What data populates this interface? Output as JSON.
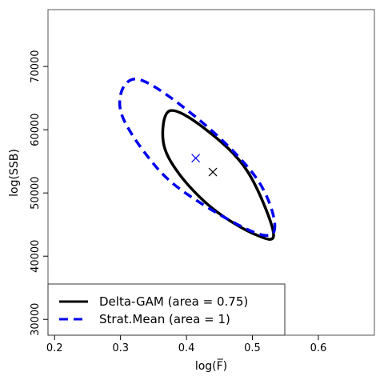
{
  "chart_data": {
    "type": "scatter",
    "title": "",
    "xlabel": "log(F̅)",
    "ylabel": "log(SSB)",
    "xlim": [
      0.19,
      0.685
    ],
    "ylim": [
      27500,
      79000
    ],
    "xticks": [
      0.2,
      0.3,
      0.4,
      0.5,
      0.6
    ],
    "xtick_labels": [
      "0.2",
      "0.3",
      "0.4",
      "0.5",
      "0.6"
    ],
    "yticks": [
      30000,
      40000,
      50000,
      60000,
      70000
    ],
    "ytick_labels": [
      "30000",
      "40000",
      "50000",
      "60000",
      "70000"
    ],
    "grid": false,
    "legend_position": "bottom-left",
    "series": [
      {
        "name": "Delta-GAM (area = 0.75)",
        "style": "solid",
        "color": "#000000",
        "ellipse": {
          "points": [
            {
              "x": 0.532,
              "y": 43600
            },
            {
              "x": 0.503,
              "y": 43500
            },
            {
              "x": 0.44,
              "y": 47500
            },
            {
              "x": 0.389,
              "y": 53000
            },
            {
              "x": 0.365,
              "y": 58000
            },
            {
              "x": 0.375,
              "y": 63000
            },
            {
              "x": 0.43,
              "y": 60000
            },
            {
              "x": 0.492,
              "y": 53500
            }
          ]
        },
        "center": {
          "x": 0.44,
          "y": 53300
        }
      },
      {
        "name": "Strat.Mean (area = 1)",
        "style": "dashed",
        "color": "#0000ee",
        "ellipse": {
          "points": [
            {
              "x": 0.534,
              "y": 45000
            },
            {
              "x": 0.51,
              "y": 43500
            },
            {
              "x": 0.42,
              "y": 48500
            },
            {
              "x": 0.355,
              "y": 54000
            },
            {
              "x": 0.3,
              "y": 63000
            },
            {
              "x": 0.325,
              "y": 68000
            },
            {
              "x": 0.42,
              "y": 61500
            },
            {
              "x": 0.505,
              "y": 52500
            }
          ]
        },
        "center": {
          "x": 0.414,
          "y": 55500
        }
      }
    ]
  }
}
